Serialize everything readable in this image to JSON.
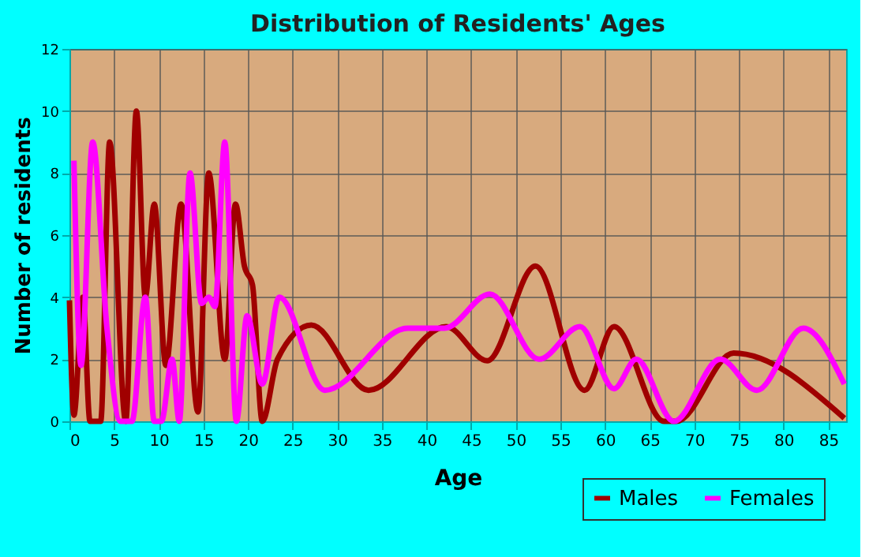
{
  "chart_data": {
    "type": "line",
    "title": "Distribution of Residents' Ages",
    "xlabel": "Age",
    "ylabel": "Number of residents",
    "xlim": [
      0,
      87
    ],
    "xticks": [
      0,
      5,
      10,
      15,
      20,
      25,
      30,
      35,
      40,
      45,
      50,
      55,
      60,
      65,
      70,
      75,
      80,
      85
    ],
    "ylim": [
      0,
      12
    ],
    "yticks": [
      0,
      2,
      4,
      6,
      8,
      10,
      12
    ],
    "grid": true,
    "legend": "bottom right",
    "line_style": "solid",
    "marker": "none",
    "series": [
      {
        "name": "Males",
        "color": "#a00000",
        "x": [
          0,
          0.5,
          1.5,
          2.3,
          3.5,
          4.5,
          6.3,
          7.5,
          8.5,
          9.5,
          10.8,
          12.5,
          14.4,
          15.6,
          17.4,
          18.6,
          19.6,
          20.5,
          21.6,
          23.3,
          27.1,
          33.5,
          42.2,
          46.8,
          52.2,
          57.7,
          61,
          66.6,
          68,
          74.4,
          86.8
        ],
        "values": [
          3.9,
          0.2,
          4,
          0,
          0,
          9,
          0,
          10,
          4,
          7,
          1.8,
          7,
          0.3,
          8,
          2,
          7,
          5,
          4.4,
          0,
          2,
          3.1,
          1,
          3.05,
          1.95,
          5,
          1,
          3.05,
          0,
          0,
          2.2,
          0.1
        ]
      },
      {
        "name": "Females",
        "color": "#ff00ff",
        "x": [
          0.5,
          1.3,
          2.6,
          4.2,
          5.7,
          7,
          8.5,
          9.5,
          10.3,
          11.5,
          12.3,
          13.5,
          14.8,
          15.6,
          16.3,
          17.4,
          18.7,
          19.9,
          21.6,
          23.5,
          28.6,
          37.9,
          42,
          47.1,
          52.6,
          57.2,
          61,
          63.5,
          67.7,
          72.9,
          77,
          82.2,
          86.8
        ],
        "values": [
          8.4,
          1.8,
          9,
          3,
          0,
          0,
          4,
          0,
          0,
          2,
          0,
          8,
          3.8,
          4,
          3.7,
          9,
          0,
          3.4,
          1.2,
          4,
          1,
          3,
          3,
          4.1,
          2,
          3.05,
          1.05,
          2,
          0,
          2,
          1,
          3,
          1.2
        ]
      }
    ]
  }
}
